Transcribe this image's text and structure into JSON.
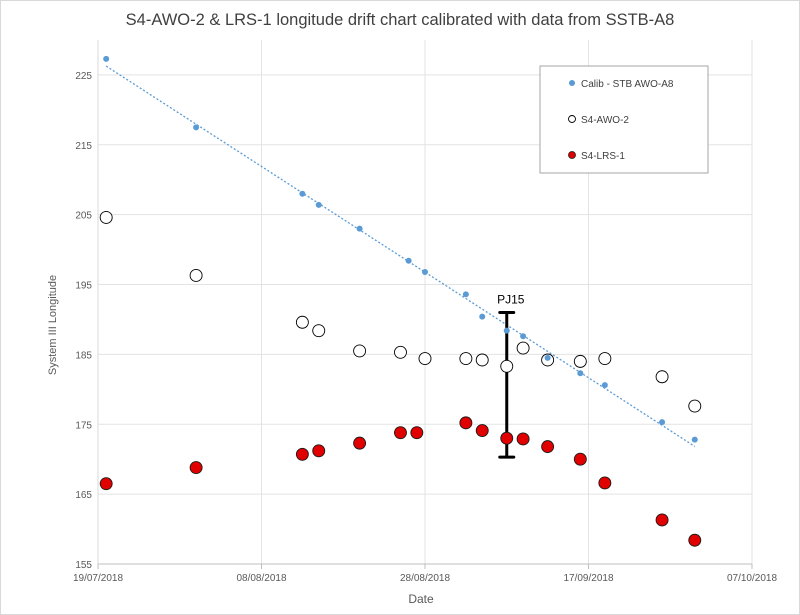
{
  "chart_data": {
    "type": "scatter",
    "title": "S4-AWO-2 & LRS-1 longitude drift chart calibrated with data from SSTB-A8",
    "xlabel": "Date",
    "ylabel": "System III Longitude",
    "x_axis": {
      "type": "date",
      "min": "2018-07-19",
      "max": "2018-10-07",
      "ticks": [
        {
          "date": "2018-07-19",
          "label": "19/07/2018"
        },
        {
          "date": "2018-08-08",
          "label": "08/08/2018"
        },
        {
          "date": "2018-08-28",
          "label": "28/08/2018"
        },
        {
          "date": "2018-09-17",
          "label": "17/09/2018"
        },
        {
          "date": "2018-10-07",
          "label": "07/10/2018"
        }
      ]
    },
    "y_axis": {
      "min": 155,
      "max": 230,
      "ticks": [
        155,
        165,
        175,
        185,
        195,
        205,
        215,
        225
      ]
    },
    "grid": true,
    "legend_position": "top-right",
    "series": [
      {
        "name": "Calib - STB AWO-A8",
        "marker": "small-filled-circle",
        "color": "#5b9bd5",
        "trendline": "linear-dotted",
        "points": [
          {
            "x": "2018-07-20",
            "y": 227.3
          },
          {
            "x": "2018-07-31",
            "y": 217.5
          },
          {
            "x": "2018-08-13",
            "y": 208.0
          },
          {
            "x": "2018-08-15",
            "y": 206.4
          },
          {
            "x": "2018-08-20",
            "y": 203.0
          },
          {
            "x": "2018-08-26",
            "y": 198.4
          },
          {
            "x": "2018-08-28",
            "y": 196.8
          },
          {
            "x": "2018-09-02",
            "y": 193.6
          },
          {
            "x": "2018-09-04",
            "y": 190.4
          },
          {
            "x": "2018-09-07",
            "y": 188.4
          },
          {
            "x": "2018-09-09",
            "y": 187.6
          },
          {
            "x": "2018-09-12",
            "y": 184.5
          },
          {
            "x": "2018-09-16",
            "y": 182.3
          },
          {
            "x": "2018-09-19",
            "y": 180.6
          },
          {
            "x": "2018-09-26",
            "y": 175.3
          },
          {
            "x": "2018-09-30",
            "y": 172.8
          }
        ]
      },
      {
        "name": "S4-AWO-2",
        "marker": "open-circle",
        "color": "#000000",
        "points": [
          {
            "x": "2018-07-20",
            "y": 204.6
          },
          {
            "x": "2018-07-31",
            "y": 196.3
          },
          {
            "x": "2018-08-13",
            "y": 189.6
          },
          {
            "x": "2018-08-15",
            "y": 188.4
          },
          {
            "x": "2018-08-20",
            "y": 185.5
          },
          {
            "x": "2018-08-25",
            "y": 185.3
          },
          {
            "x": "2018-08-28",
            "y": 184.4
          },
          {
            "x": "2018-09-02",
            "y": 184.4
          },
          {
            "x": "2018-09-04",
            "y": 184.2
          },
          {
            "x": "2018-09-07",
            "y": 183.3
          },
          {
            "x": "2018-09-09",
            "y": 185.9
          },
          {
            "x": "2018-09-12",
            "y": 184.2
          },
          {
            "x": "2018-09-16",
            "y": 184.0
          },
          {
            "x": "2018-09-19",
            "y": 184.4
          },
          {
            "x": "2018-09-26",
            "y": 181.8
          },
          {
            "x": "2018-09-30",
            "y": 177.6
          }
        ]
      },
      {
        "name": "S4-LRS-1",
        "marker": "filled-circle",
        "color": "#e00000",
        "points": [
          {
            "x": "2018-07-20",
            "y": 166.5
          },
          {
            "x": "2018-07-31",
            "y": 168.8
          },
          {
            "x": "2018-08-13",
            "y": 170.7
          },
          {
            "x": "2018-08-15",
            "y": 171.2
          },
          {
            "x": "2018-08-20",
            "y": 172.3
          },
          {
            "x": "2018-08-25",
            "y": 173.8
          },
          {
            "x": "2018-08-27",
            "y": 173.8
          },
          {
            "x": "2018-09-02",
            "y": 175.2
          },
          {
            "x": "2018-09-04",
            "y": 174.1
          },
          {
            "x": "2018-09-07",
            "y": 173.0
          },
          {
            "x": "2018-09-09",
            "y": 172.9
          },
          {
            "x": "2018-09-12",
            "y": 171.8
          },
          {
            "x": "2018-09-16",
            "y": 170.0
          },
          {
            "x": "2018-09-19",
            "y": 166.6
          },
          {
            "x": "2018-09-26",
            "y": 161.3
          },
          {
            "x": "2018-09-30",
            "y": 158.4
          }
        ]
      }
    ],
    "annotations": [
      {
        "label": "PJ15",
        "type": "vertical-bar",
        "x": "2018-09-07",
        "y_from": 170.3,
        "y_to": 191.0
      }
    ]
  }
}
